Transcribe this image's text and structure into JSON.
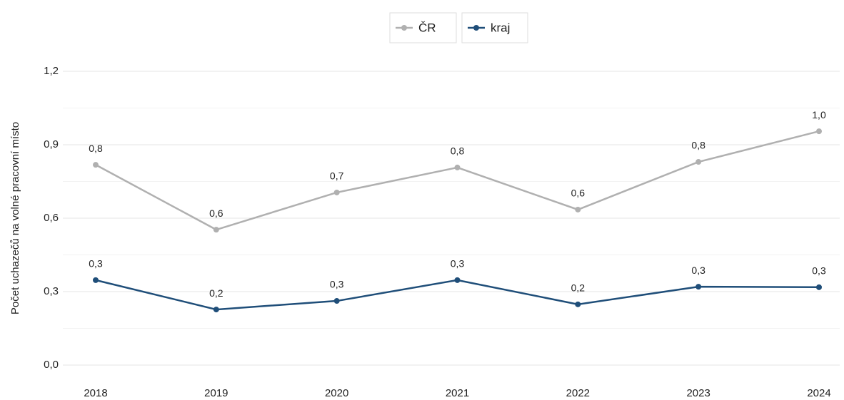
{
  "chart_data": {
    "type": "line",
    "y_label": "Počet uchazečů na volné pracovní místo",
    "categories": [
      "2018",
      "2019",
      "2020",
      "2021",
      "2022",
      "2023",
      "2024"
    ],
    "series": [
      {
        "name": "ČR",
        "color": "#b0b0b0",
        "values": [
          0.818,
          0.553,
          0.705,
          0.807,
          0.635,
          0.83,
          0.955
        ],
        "value_labels": [
          "0,8",
          "0,6",
          "0,7",
          "0,8",
          "0,6",
          "0,8",
          "1,0"
        ]
      },
      {
        "name": "kraj",
        "color": "#1f4e79",
        "values": [
          0.347,
          0.227,
          0.262,
          0.347,
          0.248,
          0.32,
          0.318
        ],
        "value_labels": [
          "0,3",
          "0,2",
          "0,3",
          "0,3",
          "0,2",
          "0,3",
          "0,3"
        ]
      }
    ],
    "ylim": [
      0,
      1.2
    ],
    "yticks": [
      {
        "value": 0,
        "label": "0,0"
      },
      {
        "value": 0.3,
        "label": "0,3"
      },
      {
        "value": 0.6,
        "label": "0,6"
      },
      {
        "value": 0.9,
        "label": "0,9"
      },
      {
        "value": 1.2,
        "label": "1,2"
      }
    ],
    "minor_yticks": [
      0.15,
      0.45,
      0.75,
      1.05
    ],
    "grid": true,
    "legend": "top"
  }
}
